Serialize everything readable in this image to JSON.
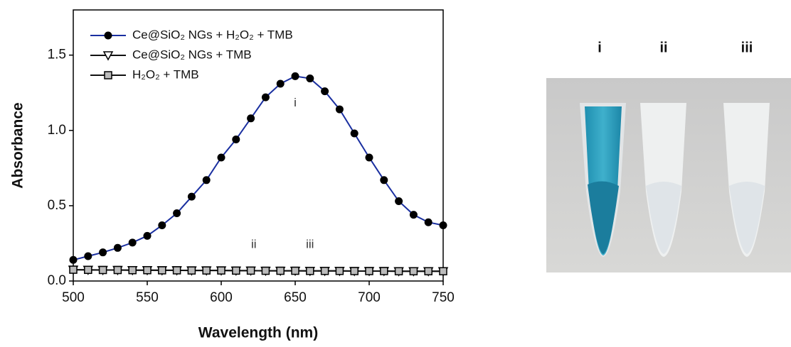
{
  "chart_data": {
    "type": "line",
    "x_label": "Wavelength (nm)",
    "y_label": "Absorbance",
    "x": [
      500,
      510,
      520,
      530,
      540,
      550,
      560,
      570,
      580,
      590,
      600,
      610,
      620,
      630,
      640,
      650,
      660,
      670,
      680,
      690,
      700,
      710,
      720,
      730,
      740,
      750
    ],
    "series": [
      {
        "name": "Ce@SiO₂ NGs + H₂O₂ + TMB",
        "color": "#1a2fa0",
        "marker": "circle",
        "values": [
          0.14,
          0.165,
          0.19,
          0.22,
          0.255,
          0.3,
          0.37,
          0.45,
          0.56,
          0.67,
          0.82,
          0.94,
          1.08,
          1.22,
          1.31,
          1.36,
          1.345,
          1.26,
          1.14,
          0.98,
          0.82,
          0.67,
          0.53,
          0.44,
          0.39,
          0.37
        ]
      },
      {
        "name": "Ce@SiO₂ NGs + TMB",
        "color": "#111111",
        "marker": "triangle",
        "values": [
          0.075,
          0.074,
          0.073,
          0.073,
          0.072,
          0.072,
          0.071,
          0.071,
          0.07,
          0.07,
          0.07,
          0.069,
          0.069,
          0.068,
          0.068,
          0.068,
          0.067,
          0.067,
          0.067,
          0.066,
          0.066,
          0.066,
          0.065,
          0.065,
          0.065,
          0.065
        ]
      },
      {
        "name": "H₂O₂ + TMB",
        "color": "#111111",
        "marker": "square",
        "values": [
          0.075,
          0.074,
          0.073,
          0.073,
          0.072,
          0.072,
          0.071,
          0.071,
          0.07,
          0.07,
          0.07,
          0.069,
          0.069,
          0.068,
          0.068,
          0.068,
          0.067,
          0.067,
          0.067,
          0.066,
          0.066,
          0.066,
          0.065,
          0.065,
          0.065,
          0.065
        ]
      }
    ],
    "xlim": [
      500,
      750
    ],
    "xticks": [
      500,
      550,
      600,
      650,
      700,
      750
    ],
    "ylim": [
      0,
      1.8
    ],
    "yticks": [
      {
        "value": 0,
        "label": "0.0"
      },
      0.5,
      {
        "value": 1,
        "label": "1.0"
      },
      1.5
    ],
    "annotations": [
      {
        "text": "i",
        "x": 650,
        "y": 1.18
      },
      {
        "text": "ii",
        "x": 622,
        "y": 0.24
      },
      {
        "text": "iii",
        "x": 660,
        "y": 0.24
      }
    ]
  },
  "photo": {
    "labels": [
      "i",
      "ii",
      "iii"
    ]
  }
}
